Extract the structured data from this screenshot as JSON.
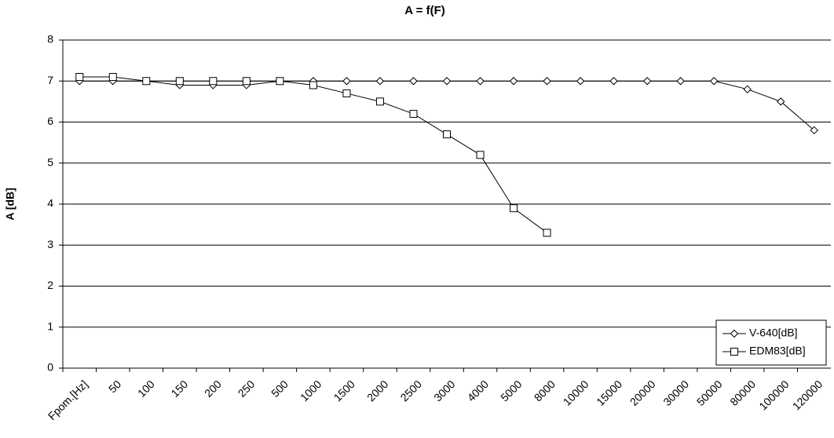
{
  "chart_data": {
    "type": "line",
    "title": "A = f(F)",
    "y_label": "A [dB]",
    "categories": [
      "Fpom.[Hz]",
      "50",
      "100",
      "150",
      "200",
      "250",
      "500",
      "1000",
      "1500",
      "2000",
      "2500",
      "3000",
      "4000",
      "5000",
      "8000",
      "10000",
      "15000",
      "20000",
      "30000",
      "50000",
      "80000",
      "100000",
      "120000"
    ],
    "series": [
      {
        "name": "V-640[dB]",
        "color": "#000000",
        "marker": "diamond",
        "values": [
          7,
          7,
          7,
          6.9,
          6.9,
          6.9,
          7,
          7,
          7,
          7,
          7,
          7,
          7,
          7,
          7,
          7,
          7,
          7,
          7,
          7,
          6.8,
          6.5,
          5.8
        ]
      },
      {
        "name": "EDM83[dB]",
        "color": "#000000",
        "marker": "square",
        "values": [
          7.1,
          7.1,
          7,
          7,
          7,
          7,
          7,
          6.9,
          6.7,
          6.5,
          6.2,
          5.7,
          5.2,
          3.9,
          3.3,
          null,
          null,
          null,
          null,
          null,
          null,
          null,
          null
        ]
      }
    ],
    "ylim": [
      0,
      8
    ],
    "yticks": [
      0,
      1,
      2,
      3,
      4,
      5,
      6,
      7,
      8
    ],
    "grid": true,
    "legend": "bottom-right"
  }
}
